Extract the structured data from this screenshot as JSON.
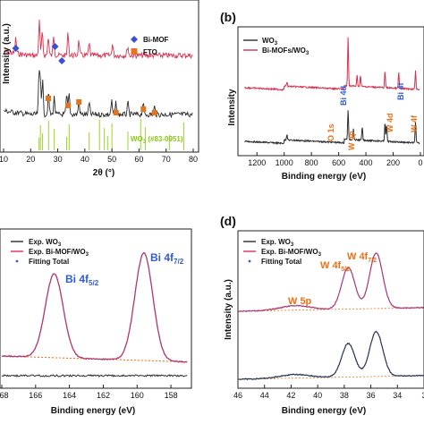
{
  "colors": {
    "black": "#2b2b2b",
    "red": "#d9304f",
    "blue": "#2e5bd9",
    "orange": "#e8731a",
    "green": "#9bd42a",
    "bimof": "#3a4fd8"
  },
  "chart_data": [
    {
      "id": "a",
      "type": "line",
      "panel_label": "",
      "xlabel": "2θ (°)",
      "ylabel": "Intensity (a.u.)",
      "xlim": [
        10,
        80
      ],
      "xticks": [
        "10",
        "20",
        "30",
        "40",
        "50",
        "60",
        "70",
        "80"
      ],
      "legend": [
        {
          "label": "Bi-MOF",
          "marker": "diamond"
        },
        {
          "label": "FTO",
          "marker": "square"
        }
      ],
      "reference_label": "WO3 (#83-0951)",
      "reference_lines": [
        23.1,
        23.6,
        24.4,
        26.6,
        28.7,
        33.3,
        34.2,
        41.6,
        45.4,
        47.2,
        48.4,
        50.0,
        55.9,
        60.6,
        62.3,
        71.2,
        76.5
      ],
      "series": [
        {
          "name": "Bi-MOF/WO3",
          "peaks": [
            [
              14.5,
              0.4
            ],
            [
              23.2,
              0.9
            ],
            [
              24.3,
              0.6
            ],
            [
              26.5,
              0.5
            ],
            [
              28.5,
              0.55
            ],
            [
              33.8,
              0.6
            ],
            [
              37.8,
              0.4
            ],
            [
              41.6,
              0.3
            ],
            [
              50.2,
              0.3
            ],
            [
              55.8,
              0.25
            ]
          ]
        },
        {
          "name": "WO3",
          "peaks": [
            [
              23.1,
              1.0
            ],
            [
              23.6,
              0.85
            ],
            [
              24.4,
              0.9
            ],
            [
              26.6,
              0.55
            ],
            [
              28.7,
              0.45
            ],
            [
              33.3,
              0.5
            ],
            [
              34.2,
              0.55
            ],
            [
              37.8,
              0.35
            ],
            [
              41.6,
              0.3
            ],
            [
              49.9,
              0.35
            ],
            [
              51.5,
              0.3
            ],
            [
              55.9,
              0.3
            ],
            [
              61.5,
              0.3
            ],
            [
              65.7,
              0.2
            ]
          ]
        }
      ],
      "bimof_marks": [
        14.5,
        29.0,
        31.5
      ],
      "fto_marks": [
        26.5,
        33.8,
        37.8,
        51.5,
        61.6,
        65.7
      ]
    },
    {
      "id": "b",
      "type": "line",
      "panel_label": "(b)",
      "xlabel": "Binding energy (eV)",
      "ylabel": "Intensity",
      "xlim": [
        1300,
        0
      ],
      "xticks": [
        "1200",
        "1000",
        "800",
        "600",
        "400",
        "200",
        "0"
      ],
      "legend": [
        "WO3",
        "Bi-MOFs/WO3"
      ],
      "annotations": [
        "O 1s",
        "W 4p",
        "W 4d",
        "W 4f",
        "Bi 4d",
        "Bi 4f"
      ],
      "series": [
        {
          "name": "WO3",
          "peaks": [
            [
              980,
              0.1
            ],
            [
              531,
              0.55
            ],
            [
              492,
              0.2
            ],
            [
              427,
              0.25
            ],
            [
              260,
              0.35
            ],
            [
              248,
              0.3
            ],
            [
              36,
              0.4
            ]
          ]
        },
        {
          "name": "Bi-MOFs/WO3",
          "peaks": [
            [
              980,
              0.08
            ],
            [
              531,
              0.9
            ],
            [
              465,
              0.2
            ],
            [
              440,
              0.2
            ],
            [
              260,
              0.3
            ],
            [
              159,
              0.3
            ],
            [
              36,
              0.35
            ]
          ]
        }
      ]
    },
    {
      "id": "c",
      "type": "line",
      "panel_label": "",
      "xlabel": "Binding energy (eV)",
      "ylabel": "",
      "xlim": [
        168,
        157
      ],
      "xticks": [
        "168",
        "166",
        "164",
        "162",
        "160",
        "158"
      ],
      "legend": [
        "Exp. WO3",
        "Exp. Bi-MOF/WO3",
        "Fitting Total"
      ],
      "annotations": [
        "Bi 4f5/2",
        "Bi 4f7/2"
      ],
      "peaks": [
        [
          164.9,
          0.78
        ],
        [
          159.6,
          1.0
        ]
      ]
    },
    {
      "id": "d",
      "type": "line",
      "panel_label": "(d)",
      "xlabel": "Binding energy (eV)",
      "ylabel": "Intensity (a.u.)",
      "xlim": [
        46,
        32
      ],
      "xticks": [
        "46",
        "44",
        "42",
        "40",
        "38",
        "36",
        "34",
        "3"
      ],
      "legend": [
        "Exp. WO3",
        "Exp. Bi-MOF/WO3",
        "Fitting Total"
      ],
      "annotations": [
        "W 4f5/2",
        "W 4f7/2",
        "W 5p"
      ],
      "peaks": [
        [
          41.7,
          0.08
        ],
        [
          37.7,
          0.75
        ],
        [
          35.6,
          1.0
        ]
      ]
    }
  ]
}
